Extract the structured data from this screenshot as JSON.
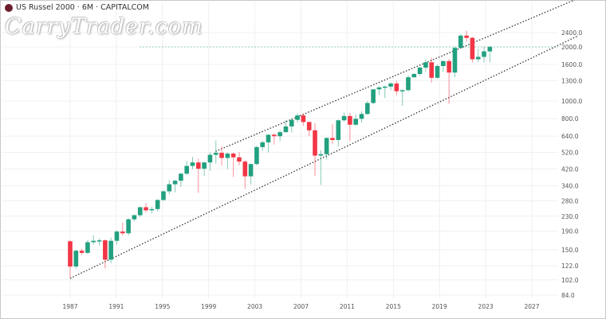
{
  "header": {
    "title": "US Russel 2000 · 6M · CAPITALCOM",
    "logo_icon": "capitalcom-logo-icon"
  },
  "watermark": "CarryTrader.com",
  "colors": {
    "up": "#22a07f",
    "down": "#f23645",
    "grid": "#f0f0f0",
    "channel": "#333333",
    "level": "#8fd0c0"
  },
  "chart_data": {
    "type": "candlestick",
    "title": "US Russel 2000 · 6M · CAPITALCOM",
    "y_scale": "log",
    "ylim": [
      78,
      2900
    ],
    "xlim": [
      1984.5,
      2031.5
    ],
    "y_ticks": [
      "2400.0",
      "2000.0",
      "1600.0",
      "1300.0",
      "1000.0",
      "800.0",
      "640.0",
      "520.0",
      "420.0",
      "340.0",
      "280.0",
      "230.0",
      "190.0",
      "150.0",
      "122.0",
      "102.0",
      "84.0"
    ],
    "x_ticks": [
      "1987",
      "1991",
      "1995",
      "1999",
      "2003",
      "2007",
      "2011",
      "2015",
      "2019",
      "2023",
      "2027"
    ],
    "grid": true,
    "horizontal_level": 2000,
    "channel": {
      "upper": [
        [
          1999.6,
          527
        ],
        [
          2030.7,
          3640
        ]
      ],
      "lower": [
        [
          1987.0,
          104
        ],
        [
          2031.0,
          2303
        ]
      ]
    },
    "candles": [
      {
        "t": "1987-H2",
        "o": 167,
        "h": 170,
        "l": 105,
        "c": 121
      },
      {
        "t": "1988-H1",
        "o": 121,
        "h": 150,
        "l": 118,
        "c": 148
      },
      {
        "t": "1988-H2",
        "o": 148,
        "h": 152,
        "l": 140,
        "c": 144
      },
      {
        "t": "1989-H1",
        "o": 144,
        "h": 170,
        "l": 142,
        "c": 165
      },
      {
        "t": "1989-H2",
        "o": 165,
        "h": 180,
        "l": 160,
        "c": 168
      },
      {
        "t": "1990-H1",
        "o": 168,
        "h": 173,
        "l": 158,
        "c": 169
      },
      {
        "t": "1990-H2",
        "o": 169,
        "h": 171,
        "l": 118,
        "c": 132
      },
      {
        "t": "1991-H1",
        "o": 132,
        "h": 175,
        "l": 126,
        "c": 168
      },
      {
        "t": "1991-H2",
        "o": 168,
        "h": 192,
        "l": 160,
        "c": 189
      },
      {
        "t": "1992-H1",
        "o": 189,
        "h": 212,
        "l": 180,
        "c": 185
      },
      {
        "t": "1992-H2",
        "o": 185,
        "h": 225,
        "l": 180,
        "c": 221
      },
      {
        "t": "1993-H1",
        "o": 221,
        "h": 235,
        "l": 215,
        "c": 233
      },
      {
        "t": "1993-H2",
        "o": 233,
        "h": 260,
        "l": 228,
        "c": 258
      },
      {
        "t": "1994-H1",
        "o": 258,
        "h": 272,
        "l": 242,
        "c": 248
      },
      {
        "t": "1994-H2",
        "o": 248,
        "h": 260,
        "l": 238,
        "c": 252
      },
      {
        "t": "1995-H1",
        "o": 252,
        "h": 285,
        "l": 245,
        "c": 283
      },
      {
        "t": "1995-H2",
        "o": 283,
        "h": 320,
        "l": 280,
        "c": 316
      },
      {
        "t": "1996-H1",
        "o": 316,
        "h": 365,
        "l": 305,
        "c": 346
      },
      {
        "t": "1996-H2",
        "o": 346,
        "h": 365,
        "l": 312,
        "c": 362
      },
      {
        "t": "1997-H1",
        "o": 362,
        "h": 400,
        "l": 335,
        "c": 396
      },
      {
        "t": "1997-H2",
        "o": 396,
        "h": 465,
        "l": 390,
        "c": 437
      },
      {
        "t": "1998-H1",
        "o": 437,
        "h": 491,
        "l": 420,
        "c": 457
      },
      {
        "t": "1998-H2",
        "o": 457,
        "h": 480,
        "l": 310,
        "c": 422
      },
      {
        "t": "1999-H1",
        "o": 422,
        "h": 460,
        "l": 385,
        "c": 457
      },
      {
        "t": "1999-H2",
        "o": 457,
        "h": 520,
        "l": 410,
        "c": 504
      },
      {
        "t": "2000-H1",
        "o": 504,
        "h": 606,
        "l": 450,
        "c": 517
      },
      {
        "t": "2000-H2",
        "o": 517,
        "h": 560,
        "l": 440,
        "c": 484
      },
      {
        "t": "2001-H1",
        "o": 484,
        "h": 520,
        "l": 420,
        "c": 512
      },
      {
        "t": "2001-H2",
        "o": 512,
        "h": 520,
        "l": 380,
        "c": 488
      },
      {
        "t": "2002-H1",
        "o": 488,
        "h": 522,
        "l": 440,
        "c": 462
      },
      {
        "t": "2002-H2",
        "o": 462,
        "h": 470,
        "l": 327,
        "c": 383
      },
      {
        "t": "2003-H1",
        "o": 383,
        "h": 450,
        "l": 345,
        "c": 448
      },
      {
        "t": "2003-H2",
        "o": 448,
        "h": 565,
        "l": 440,
        "c": 556
      },
      {
        "t": "2004-H1",
        "o": 556,
        "h": 605,
        "l": 530,
        "c": 591
      },
      {
        "t": "2004-H2",
        "o": 591,
        "h": 655,
        "l": 520,
        "c": 651
      },
      {
        "t": "2005-H1",
        "o": 651,
        "h": 665,
        "l": 575,
        "c": 639
      },
      {
        "t": "2005-H2",
        "o": 639,
        "h": 690,
        "l": 600,
        "c": 673
      },
      {
        "t": "2006-H1",
        "o": 673,
        "h": 785,
        "l": 670,
        "c": 724
      },
      {
        "t": "2006-H2",
        "o": 724,
        "h": 800,
        "l": 670,
        "c": 787
      },
      {
        "t": "2007-H1",
        "o": 787,
        "h": 856,
        "l": 760,
        "c": 833
      },
      {
        "t": "2007-H2",
        "o": 833,
        "h": 855,
        "l": 730,
        "c": 766
      },
      {
        "t": "2008-H1",
        "o": 766,
        "h": 770,
        "l": 640,
        "c": 689
      },
      {
        "t": "2008-H2",
        "o": 689,
        "h": 755,
        "l": 385,
        "c": 499
      },
      {
        "t": "2009-H1",
        "o": 499,
        "h": 535,
        "l": 343,
        "c": 508
      },
      {
        "t": "2009-H2",
        "o": 508,
        "h": 630,
        "l": 475,
        "c": 625
      },
      {
        "t": "2010-H1",
        "o": 625,
        "h": 745,
        "l": 580,
        "c": 609
      },
      {
        "t": "2010-H2",
        "o": 609,
        "h": 790,
        "l": 560,
        "c": 783
      },
      {
        "t": "2011-H1",
        "o": 783,
        "h": 865,
        "l": 770,
        "c": 827
      },
      {
        "t": "2011-H2",
        "o": 827,
        "h": 860,
        "l": 601,
        "c": 740
      },
      {
        "t": "2012-H1",
        "o": 740,
        "h": 847,
        "l": 730,
        "c": 798
      },
      {
        "t": "2012-H2",
        "o": 798,
        "h": 880,
        "l": 760,
        "c": 849
      },
      {
        "t": "2013-H1",
        "o": 849,
        "h": 1000,
        "l": 840,
        "c": 977
      },
      {
        "t": "2013-H2",
        "o": 977,
        "h": 1165,
        "l": 960,
        "c": 1163
      },
      {
        "t": "2014-H1",
        "o": 1163,
        "h": 1210,
        "l": 1080,
        "c": 1192
      },
      {
        "t": "2014-H2",
        "o": 1192,
        "h": 1220,
        "l": 1040,
        "c": 1204
      },
      {
        "t": "2015-H1",
        "o": 1204,
        "h": 1275,
        "l": 1150,
        "c": 1253
      },
      {
        "t": "2015-H2",
        "o": 1253,
        "h": 1296,
        "l": 1080,
        "c": 1135
      },
      {
        "t": "2016-H1",
        "o": 1135,
        "h": 1160,
        "l": 943,
        "c": 1151
      },
      {
        "t": "2016-H2",
        "o": 1151,
        "h": 1390,
        "l": 1130,
        "c": 1357
      },
      {
        "t": "2017-H1",
        "o": 1357,
        "h": 1430,
        "l": 1345,
        "c": 1415
      },
      {
        "t": "2017-H2",
        "o": 1415,
        "h": 1550,
        "l": 1390,
        "c": 1535
      },
      {
        "t": "2018-H1",
        "o": 1535,
        "h": 1706,
        "l": 1463,
        "c": 1643
      },
      {
        "t": "2018-H2",
        "o": 1643,
        "h": 1742,
        "l": 1266,
        "c": 1348
      },
      {
        "t": "2019-H1",
        "o": 1348,
        "h": 1600,
        "l": 1330,
        "c": 1566
      },
      {
        "t": "2019-H2",
        "o": 1566,
        "h": 1680,
        "l": 1450,
        "c": 1668
      },
      {
        "t": "2020-H1",
        "o": 1668,
        "h": 1715,
        "l": 966,
        "c": 1441
      },
      {
        "t": "2020-H2",
        "o": 1441,
        "h": 2010,
        "l": 1360,
        "c": 1975
      },
      {
        "t": "2021-H1",
        "o": 1975,
        "h": 2360,
        "l": 1960,
        "c": 2310
      },
      {
        "t": "2021-H2",
        "o": 2310,
        "h": 2458,
        "l": 2140,
        "c": 2245
      },
      {
        "t": "2022-H1",
        "o": 2245,
        "h": 2275,
        "l": 1640,
        "c": 1708
      },
      {
        "t": "2022-H2",
        "o": 1708,
        "h": 1950,
        "l": 1650,
        "c": 1761
      },
      {
        "t": "2023-H1",
        "o": 1761,
        "h": 2000,
        "l": 1640,
        "c": 1888
      },
      {
        "t": "2023-H2",
        "o": 1888,
        "h": 2030,
        "l": 1640,
        "c": 2000
      }
    ]
  }
}
